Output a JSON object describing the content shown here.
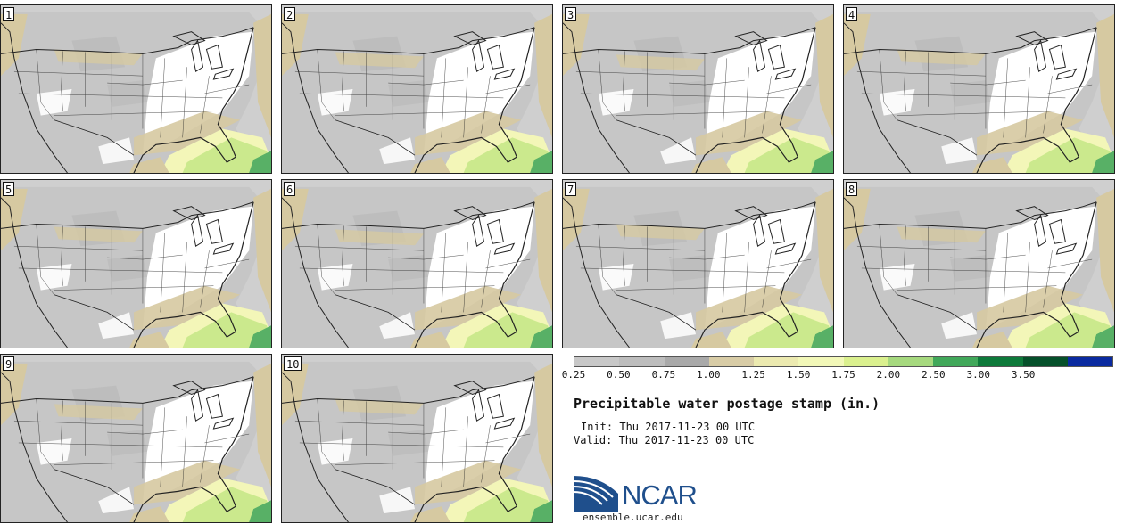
{
  "figure": {
    "title": "Precipitable water postage stamp (in.)",
    "init": "Init: Thu 2017-11-23 00 UTC",
    "valid": "Valid: Thu 2017-11-23 00 UTC",
    "website": "ensemble.ucar.edu",
    "logo_text": "NCAR"
  },
  "members": [
    "1",
    "2",
    "3",
    "4",
    "5",
    "6",
    "7",
    "8",
    "9",
    "10"
  ],
  "colorbar": {
    "units": "in.",
    "ticks": [
      "0.25",
      "0.50",
      "0.75",
      "1.00",
      "1.25",
      "1.50",
      "1.75",
      "2.00",
      "2.50",
      "3.00",
      "3.50"
    ],
    "colors": [
      "#c8c8c8",
      "#bdbdbd",
      "#a9a9a9",
      "#d8cca6",
      "#eceab0",
      "#f2f8b8",
      "#daf08e",
      "#a6d97e",
      "#41a85a",
      "#0e7a3a",
      "#05502a",
      "#0a2aa0"
    ]
  },
  "map_colors": {
    "ocean": "#cfcfcf",
    "land_dry": "#ffffff",
    "land_mid": "#c6c6c6",
    "land_high": "#bababa",
    "coast_tan": "#d6c9a1",
    "moist_yellow": "#f3f6b8",
    "moist_green": "#cbe98d",
    "wet_green": "#58b066",
    "lines": "#222222"
  }
}
